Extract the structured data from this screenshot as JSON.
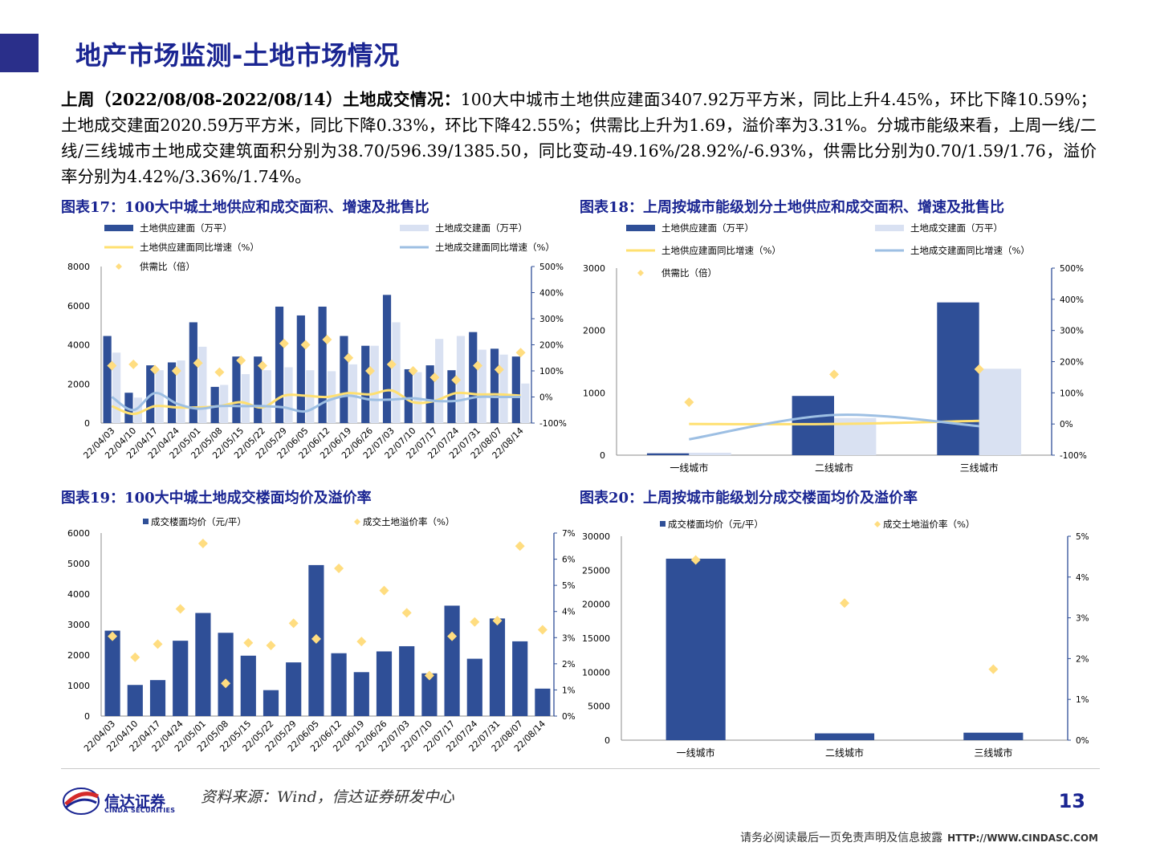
{
  "header": {
    "title": "地产市场监测-土地市场情况"
  },
  "summary": {
    "lead": "上周（2022/08/08-2022/08/14）土地成交情况：",
    "text": "100大中城市土地供应建面3407.92万平方米，同比上升4.45%，环比下降10.59%；土地成交建面2020.59万平方米，同比下降0.33%，环比下降42.55%；供需比上升为1.69，溢价率为3.31%。分城市能级来看，上周一线/二线/三线城市土地成交建筑面积分别为38.70/596.39/1385.50，同比变动-49.16%/28.92%/-6.93%，供需比分别为0.70/1.59/1.76，溢价率分别为4.42%/3.36%/1.74%。"
  },
  "captions": {
    "c17": "图表17：100大中城土地供应和成交面积、增速及批售比",
    "c18": "图表18：上周按城市能级划分土地供应和成交面积、增速及批售比",
    "c19": "图表19：100大中城土地成交楼面均价及溢价率",
    "c20": "图表20：上周按城市能级划分成交楼面均价及溢价率"
  },
  "colors": {
    "brand": "#1a2592",
    "bar_dark": "#2f4f97",
    "bar_light": "#d9e1f2",
    "line_yellow": "#ffe070",
    "line_blue": "#9dbfe3",
    "marker": "#ffdd80"
  },
  "chart_data": [
    {
      "id": "c17",
      "type": "bar",
      "categories": [
        "22/04/03",
        "22/04/10",
        "22/04/17",
        "22/04/24",
        "22/05/01",
        "22/05/08",
        "22/05/15",
        "22/05/22",
        "22/05/29",
        "22/06/05",
        "22/06/12",
        "22/06/19",
        "22/06/26",
        "22/07/03",
        "22/07/10",
        "22/07/17",
        "22/07/24",
        "22/07/31",
        "22/08/07",
        "22/08/14"
      ],
      "ylim_left": [
        0,
        8000
      ],
      "yticks_left": [
        "0",
        "2000",
        "4000",
        "6000",
        "8000"
      ],
      "ylim_right": [
        -100,
        500
      ],
      "yticks_right": [
        "-100%",
        "0%",
        "100%",
        "200%",
        "300%",
        "400%",
        "500%"
      ],
      "series": [
        {
          "name": "土地供应建面（万平）",
          "kind": "bar",
          "axis": "left",
          "values": [
            4450,
            1550,
            2950,
            3100,
            5150,
            1850,
            3400,
            3400,
            5950,
            5500,
            5950,
            4450,
            3950,
            6550,
            2750,
            2950,
            2700,
            4650,
            3800,
            3400
          ]
        },
        {
          "name": "土地成交建面（万平）",
          "kind": "bar",
          "axis": "left",
          "values": [
            3600,
            1300,
            2700,
            3200,
            3900,
            1950,
            2500,
            2700,
            2850,
            2700,
            2650,
            3000,
            3950,
            5150,
            2600,
            4300,
            4450,
            3750,
            3500,
            2020
          ]
        },
        {
          "name": "土地供应建面同比增速（%）",
          "kind": "line",
          "axis": "right",
          "values": [
            -35,
            -65,
            -35,
            -40,
            -40,
            -35,
            -20,
            -40,
            5,
            5,
            0,
            15,
            10,
            25,
            -20,
            -15,
            15,
            10,
            10,
            5
          ]
        },
        {
          "name": "土地成交建面同比增速（%）",
          "kind": "line",
          "axis": "right",
          "values": [
            0,
            -50,
            15,
            -25,
            -45,
            -35,
            -35,
            -35,
            -40,
            -55,
            -15,
            5,
            -10,
            -10,
            -5,
            -15,
            -15,
            0,
            0,
            0
          ]
        },
        {
          "name": "供需比（倍）",
          "kind": "scatter",
          "axis": "right",
          "values": [
            120,
            125,
            105,
            100,
            130,
            95,
            140,
            120,
            205,
            200,
            220,
            150,
            100,
            125,
            100,
            75,
            65,
            120,
            105,
            170
          ]
        }
      ]
    },
    {
      "id": "c18",
      "type": "bar",
      "categories": [
        "一线城市",
        "二线城市",
        "三线城市"
      ],
      "ylim_left": [
        0,
        3000
      ],
      "yticks_left": [
        "0",
        "1000",
        "2000",
        "3000"
      ],
      "ylim_right": [
        -100,
        500
      ],
      "yticks_right": [
        "-100%",
        "0%",
        "100%",
        "200%",
        "300%",
        "400%",
        "500%"
      ],
      "series": [
        {
          "name": "土地供应建面（万平）",
          "kind": "bar",
          "axis": "left",
          "values": [
            30,
            950,
            2450
          ]
        },
        {
          "name": "土地成交建面（万平）",
          "kind": "bar",
          "axis": "left",
          "values": [
            39,
            596,
            1386
          ]
        },
        {
          "name": "土地供应建面同比增速（%）",
          "kind": "line",
          "axis": "right",
          "values": [
            0,
            0,
            10
          ]
        },
        {
          "name": "土地成交建面同比增速（%）",
          "kind": "line",
          "axis": "right",
          "values": [
            -49.16,
            28.92,
            -6.93
          ]
        },
        {
          "name": "供需比（倍）",
          "kind": "scatter",
          "axis": "right",
          "values": [
            70,
            159,
            176
          ]
        }
      ]
    },
    {
      "id": "c19",
      "type": "bar",
      "categories": [
        "22/04/03",
        "22/04/10",
        "22/04/17",
        "22/04/24",
        "22/05/01",
        "22/05/08",
        "22/05/15",
        "22/05/22",
        "22/05/29",
        "22/06/05",
        "22/06/12",
        "22/06/19",
        "22/06/26",
        "22/07/03",
        "22/07/10",
        "22/07/17",
        "22/07/24",
        "22/07/31",
        "22/08/07",
        "22/08/14"
      ],
      "ylim_left": [
        0,
        6000
      ],
      "yticks_left": [
        "0",
        "1000",
        "2000",
        "3000",
        "4000",
        "5000",
        "6000"
      ],
      "ylim_right": [
        0,
        7
      ],
      "yticks_right": [
        "0%",
        "1%",
        "2%",
        "3%",
        "4%",
        "5%",
        "6%",
        "7%"
      ],
      "series": [
        {
          "name": "成交楼面均价（元/平）",
          "kind": "bar",
          "axis": "left",
          "values": [
            2800,
            1020,
            1180,
            2470,
            3380,
            2730,
            1980,
            850,
            1760,
            4950,
            2060,
            1440,
            2120,
            2290,
            1400,
            3620,
            1880,
            3200,
            2450,
            900
          ]
        },
        {
          "name": "成交土地溢价率（%）",
          "kind": "scatter",
          "axis": "right",
          "values": [
            3.05,
            2.25,
            2.75,
            4.1,
            6.6,
            1.25,
            2.8,
            2.7,
            3.55,
            2.95,
            5.65,
            2.85,
            4.8,
            3.95,
            1.55,
            3.05,
            3.6,
            3.65,
            6.5,
            3.3
          ]
        }
      ]
    },
    {
      "id": "c20",
      "type": "bar",
      "categories": [
        "一线城市",
        "二线城市",
        "三线城市"
      ],
      "ylim_left": [
        0,
        30000
      ],
      "yticks_left": [
        "0",
        "5000",
        "10000",
        "15000",
        "20000",
        "25000",
        "30000"
      ],
      "ylim_right": [
        0,
        5
      ],
      "yticks_right": [
        "0%",
        "1%",
        "2%",
        "3%",
        "4%",
        "5%"
      ],
      "series": [
        {
          "name": "成交楼面均价（元/平）",
          "kind": "bar",
          "axis": "left",
          "values": [
            26700,
            1000,
            1100
          ]
        },
        {
          "name": "成交土地溢价率（%）",
          "kind": "scatter",
          "axis": "right",
          "values": [
            4.42,
            3.36,
            1.74
          ]
        }
      ]
    }
  ],
  "footer": {
    "logo_cn": "信达证券",
    "logo_en": "CINDA SECURITIES",
    "source": "资料来源：Wind，信达证券研发中心",
    "page": "13",
    "disclaimer": "请务必阅读最后一页免责声明及信息披露",
    "url": "HTTP://WWW.CINDASC.COM"
  }
}
